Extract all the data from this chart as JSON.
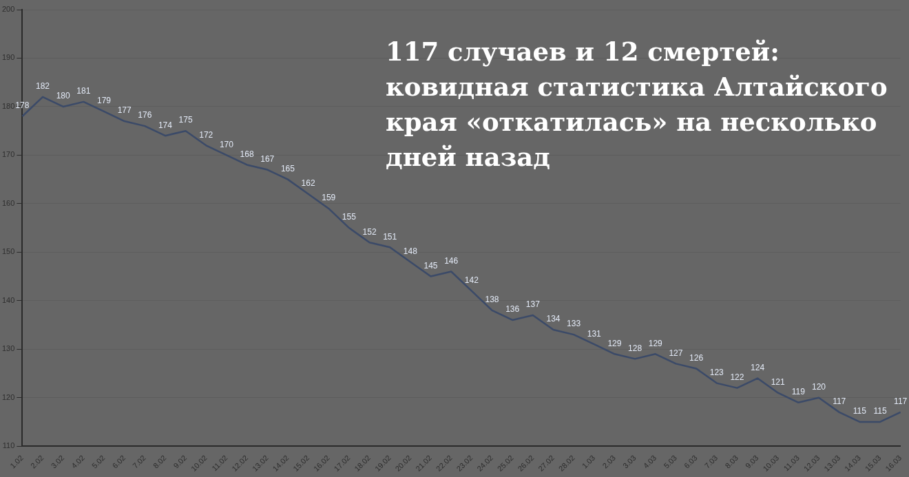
{
  "chart_data": {
    "type": "line",
    "title": "117 случаев и 12 смертей: ковидная статистика Алтайского края «откатилась» на несколько дней назад",
    "categories": [
      "1.02",
      "2.02",
      "3.02",
      "4.02",
      "5.02",
      "6.02",
      "7.02",
      "8.02",
      "9.02",
      "10.02",
      "11.02",
      "12.02",
      "13.02",
      "14.02",
      "15.02",
      "16.02",
      "17.02",
      "18.02",
      "19.02",
      "20.02",
      "21.02",
      "22.02",
      "23.02",
      "24.02",
      "25.02",
      "26.02",
      "27.02",
      "28.02",
      "1.03",
      "2.03",
      "3.03",
      "4.03",
      "5.03",
      "6.03",
      "7.03",
      "8.03",
      "9.03",
      "10.03",
      "11.03",
      "12.03",
      "13.03",
      "14.03",
      "15.03",
      "16.03"
    ],
    "series": [
      {
        "color": "#3b4a68",
        "values": [
          178,
          182,
          180,
          181,
          179,
          177,
          176,
          174,
          175,
          172,
          170,
          168,
          167,
          165,
          162,
          159,
          155,
          152,
          151,
          148,
          145,
          146,
          142,
          138,
          136,
          137,
          134,
          133,
          131,
          129,
          128,
          129,
          127,
          126,
          123,
          122,
          124,
          121,
          119,
          120,
          117,
          115,
          115,
          117
        ]
      }
    ],
    "ylim": [
      110,
      200
    ],
    "yticks": [
      110,
      120,
      130,
      140,
      150,
      160,
      170,
      180,
      190,
      200
    ],
    "grid": "y",
    "legend": false,
    "marker": "none",
    "data_labels": true
  }
}
